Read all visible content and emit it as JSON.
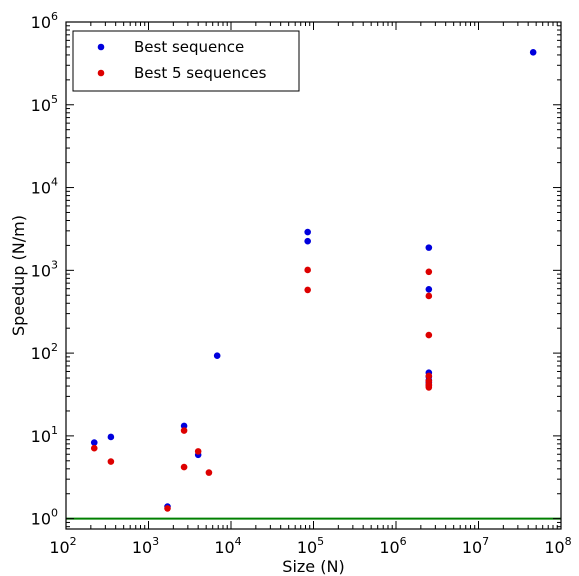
{
  "chart_data": {
    "type": "scatter",
    "title": "",
    "xlabel": "Size (N)",
    "ylabel": "Speedup (N/m)",
    "xscale": "log",
    "yscale": "log",
    "xlim": [
      100,
      100000000
    ],
    "ylim": [
      0.75,
      1000000
    ],
    "x_ticks": [
      {
        "value": 100,
        "base": "10",
        "exp": "2"
      },
      {
        "value": 1000,
        "base": "10",
        "exp": "3"
      },
      {
        "value": 10000,
        "base": "10",
        "exp": "4"
      },
      {
        "value": 100000,
        "base": "10",
        "exp": "5"
      },
      {
        "value": 1000000,
        "base": "10",
        "exp": "6"
      },
      {
        "value": 10000000,
        "base": "10",
        "exp": "7"
      },
      {
        "value": 100000000,
        "base": "10",
        "exp": "8"
      }
    ],
    "y_ticks": [
      {
        "value": 1,
        "base": "10",
        "exp": "0"
      },
      {
        "value": 10,
        "base": "10",
        "exp": "1"
      },
      {
        "value": 100,
        "base": "10",
        "exp": "2"
      },
      {
        "value": 1000,
        "base": "10",
        "exp": "3"
      },
      {
        "value": 10000,
        "base": "10",
        "exp": "4"
      },
      {
        "value": 100000,
        "base": "10",
        "exp": "5"
      },
      {
        "value": 1000000,
        "base": "10",
        "exp": "6"
      }
    ],
    "grid": false,
    "legend_position": "top-left",
    "reference_line": {
      "y": 1,
      "color": "#008000"
    },
    "series": [
      {
        "name": "Best sequence",
        "color": "#0000dd",
        "points": [
          [
            220,
            8.3
          ],
          [
            350,
            9.7
          ],
          [
            1700,
            1.4
          ],
          [
            2700,
            13.2
          ],
          [
            4000,
            5.9
          ],
          [
            6800,
            93
          ],
          [
            85000,
            2900
          ],
          [
            85000,
            2250
          ],
          [
            2500000,
            1880
          ],
          [
            2500000,
            590
          ],
          [
            2500000,
            58
          ],
          [
            2500000,
            52
          ],
          [
            2500000,
            47
          ],
          [
            2500000,
            44
          ],
          [
            2500000,
            41
          ],
          [
            46000000,
            430000
          ]
        ]
      },
      {
        "name": "Best 5 sequences",
        "color": "#dd0000",
        "points": [
          [
            220,
            7.1
          ],
          [
            350,
            4.9
          ],
          [
            1700,
            1.33
          ],
          [
            2700,
            11.6
          ],
          [
            2700,
            4.2
          ],
          [
            4000,
            6.5
          ],
          [
            5400,
            3.6
          ],
          [
            85000,
            1010
          ],
          [
            85000,
            580
          ],
          [
            2500000,
            960
          ],
          [
            2500000,
            490
          ],
          [
            2500000,
            165
          ],
          [
            2500000,
            53
          ],
          [
            2500000,
            46
          ],
          [
            2500000,
            42
          ],
          [
            2500000,
            40
          ],
          [
            2500000,
            38.5
          ]
        ]
      }
    ]
  }
}
